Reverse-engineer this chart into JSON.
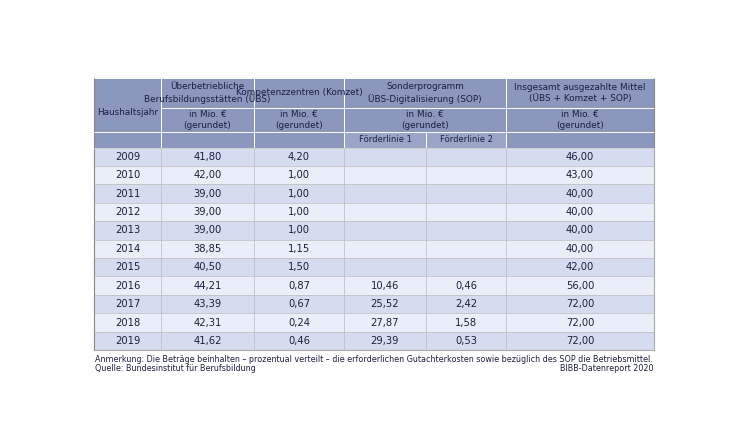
{
  "footnote1": "Anmerkung: Die Beträge beinhalten – prozentual verteilt – die erforderlichen Gutachterkosten sowie bezüglich des SOP die Betriebsmittel.",
  "footnote2": "Quelle: Bundesinstitut für Berufsbildung",
  "footnote3": "BIBB-Datenreport 2020",
  "row_header": "Haushaltsjahr",
  "col1_h1": "Überbetriebliche\nBerufsbildungsstätten (ÜBS)",
  "col2_h1": "Kompetenzzentren (Komzet)",
  "col3_h1": "Sonderprogramm\nÜBS-Digitalisierung (SOP)",
  "col5_h1": "Insgesamt ausgezahlte Mittel\n(ÜBS + Komzet + SOP)",
  "sub_label": "in Mio. €\n(gerundet)",
  "forder1": "Förderlinie 1",
  "forder2": "Förderlinie 2",
  "header_color": "#8B97BC",
  "forder_color": "#9AA5C8",
  "row_odd_color": "#D6DCF0",
  "row_even_color": "#EAEEF8",
  "years": [
    "2009",
    "2010",
    "2011",
    "2012",
    "2013",
    "2014",
    "2015",
    "2016",
    "2017",
    "2018",
    "2019"
  ],
  "ubs": [
    "41,80",
    "42,00",
    "39,00",
    "39,00",
    "39,00",
    "38,85",
    "40,50",
    "44,21",
    "43,39",
    "42,31",
    "41,62"
  ],
  "komzet": [
    "4,20",
    "1,00",
    "1,00",
    "1,00",
    "1,00",
    "1,15",
    "1,50",
    "0,87",
    "0,67",
    "0,24",
    "0,46"
  ],
  "sop_f1": [
    "",
    "",
    "",
    "",
    "",
    "",
    "",
    "10,46",
    "25,52",
    "27,87",
    "29,39"
  ],
  "sop_f2": [
    "",
    "",
    "",
    "",
    "",
    "",
    "",
    "0,46",
    "2,42",
    "1,58",
    "0,53"
  ],
  "total": [
    "46,00",
    "43,00",
    "40,00",
    "40,00",
    "40,00",
    "40,00",
    "42,00",
    "56,00",
    "72,00",
    "72,00",
    "72,00"
  ]
}
